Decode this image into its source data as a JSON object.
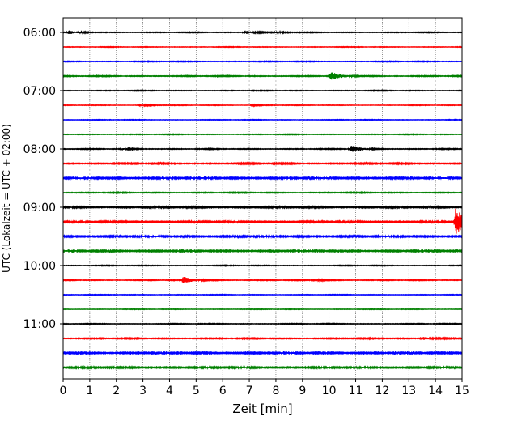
{
  "chart_data": {
    "type": "line",
    "title": "",
    "xlabel": "Zeit  [min]",
    "ylabel": "UTC (Lokalzeit = UTC + 02:00)",
    "xlim": [
      0,
      15
    ],
    "x_ticks": [
      "0",
      "1",
      "2",
      "3",
      "4",
      "5",
      "6",
      "7",
      "8",
      "9",
      "10",
      "11",
      "12",
      "13",
      "14",
      "15"
    ],
    "y_tick_labels": [
      "06:00",
      "07:00",
      "08:00",
      "09:00",
      "10:00",
      "11:00"
    ],
    "grid": "vertical dotted",
    "colors": [
      "#000000",
      "#ff0000",
      "#0000ff",
      "#008000"
    ],
    "series": [
      {
        "start": "06:00",
        "color": "#000000",
        "noise": 0.18,
        "bursts": [
          {
            "t": 0.2,
            "a": 0.8
          },
          {
            "t": 6.8,
            "a": 0.9
          },
          {
            "t": 8.0,
            "a": 0.3
          }
        ]
      },
      {
        "start": "06:15",
        "color": "#ff0000",
        "noise": 0.15,
        "bursts": []
      },
      {
        "start": "06:30",
        "color": "#0000ff",
        "noise": 0.2,
        "bursts": []
      },
      {
        "start": "06:45",
        "color": "#008000",
        "noise": 0.22,
        "bursts": [
          {
            "t": 10.05,
            "a": 2.0
          }
        ]
      },
      {
        "start": "07:00",
        "color": "#000000",
        "noise": 0.18,
        "bursts": []
      },
      {
        "start": "07:15",
        "color": "#ff0000",
        "noise": 0.15,
        "bursts": [
          {
            "t": 2.9,
            "a": 0.35
          },
          {
            "t": 7.1,
            "a": 0.3
          }
        ]
      },
      {
        "start": "07:30",
        "color": "#0000ff",
        "noise": 0.15,
        "bursts": []
      },
      {
        "start": "07:45",
        "color": "#008000",
        "noise": 0.18,
        "bursts": []
      },
      {
        "start": "08:00",
        "color": "#000000",
        "noise": 0.2,
        "bursts": [
          {
            "t": 2.2,
            "a": 0.35
          },
          {
            "t": 10.8,
            "a": 1.8
          }
        ]
      },
      {
        "start": "08:15",
        "color": "#ff0000",
        "noise": 0.3,
        "bursts": []
      },
      {
        "start": "08:30",
        "color": "#0000ff",
        "noise": 0.4,
        "bursts": []
      },
      {
        "start": "08:45",
        "color": "#008000",
        "noise": 0.22,
        "bursts": []
      },
      {
        "start": "09:00",
        "color": "#000000",
        "noise": 0.35,
        "bursts": []
      },
      {
        "start": "09:15",
        "color": "#ff0000",
        "noise": 0.38,
        "bursts": [
          {
            "t": 14.75,
            "a": 6.5
          }
        ]
      },
      {
        "start": "09:30",
        "color": "#0000ff",
        "noise": 0.4,
        "bursts": []
      },
      {
        "start": "09:45",
        "color": "#008000",
        "noise": 0.38,
        "bursts": []
      },
      {
        "start": "10:00",
        "color": "#000000",
        "noise": 0.18,
        "bursts": []
      },
      {
        "start": "10:15",
        "color": "#ff0000",
        "noise": 0.2,
        "bursts": [
          {
            "t": 4.5,
            "a": 1.6
          },
          {
            "t": 9.4,
            "a": 0.5
          }
        ]
      },
      {
        "start": "10:30",
        "color": "#0000ff",
        "noise": 0.15,
        "bursts": []
      },
      {
        "start": "10:45",
        "color": "#008000",
        "noise": 0.15,
        "bursts": []
      },
      {
        "start": "11:00",
        "color": "#000000",
        "noise": 0.18,
        "bursts": []
      },
      {
        "start": "11:15",
        "color": "#ff0000",
        "noise": 0.25,
        "bursts": [
          {
            "t": 13.5,
            "a": 0.7
          }
        ]
      },
      {
        "start": "11:30",
        "color": "#0000ff",
        "noise": 0.38,
        "bursts": []
      },
      {
        "start": "11:45",
        "color": "#008000",
        "noise": 0.38,
        "bursts": []
      }
    ]
  }
}
